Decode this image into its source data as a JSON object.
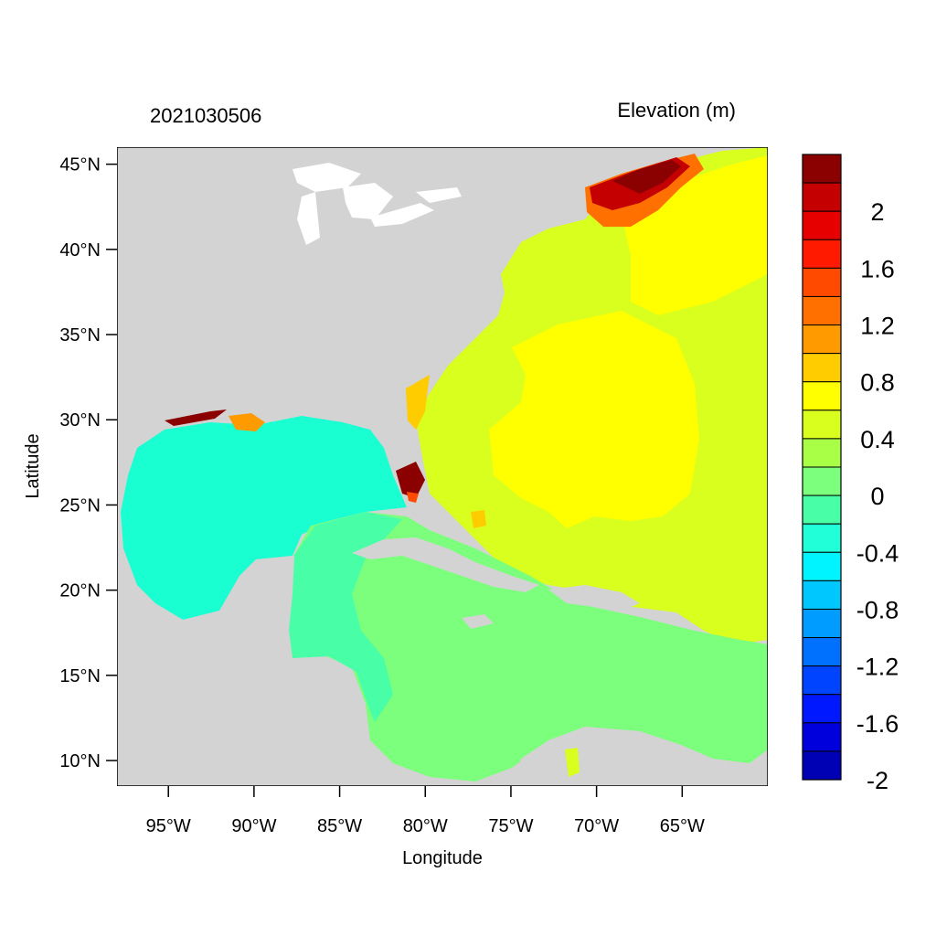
{
  "header": {
    "left_title": "2021030506",
    "right_title": "Elevation (m)"
  },
  "axes": {
    "xlabel": "Longitude",
    "ylabel": "Latitude",
    "lat_ticks": [
      {
        "value": 45,
        "label": "45°N"
      },
      {
        "value": 40,
        "label": "40°N"
      },
      {
        "value": 35,
        "label": "35°N"
      },
      {
        "value": 30,
        "label": "30°N"
      },
      {
        "value": 25,
        "label": "25°N"
      },
      {
        "value": 20,
        "label": "20°N"
      },
      {
        "value": 15,
        "label": "15°N"
      },
      {
        "value": 10,
        "label": "10°N"
      }
    ],
    "lon_ticks": [
      {
        "value": -95,
        "label": "95°W"
      },
      {
        "value": -90,
        "label": "90°W"
      },
      {
        "value": -85,
        "label": "85°W"
      },
      {
        "value": -80,
        "label": "80°W"
      },
      {
        "value": -75,
        "label": "75°W"
      },
      {
        "value": -70,
        "label": "70°W"
      },
      {
        "value": -65,
        "label": "65°W"
      }
    ],
    "lon_range": [
      -98,
      -60
    ],
    "lat_range": [
      8.5,
      46
    ]
  },
  "colorbar": {
    "levels": [
      {
        "color": "#8b0000"
      },
      {
        "color": "#c40000",
        "label": "2"
      },
      {
        "color": "#e60000"
      },
      {
        "color": "#ff1a00",
        "label": "1.6"
      },
      {
        "color": "#ff4a00"
      },
      {
        "color": "#ff7000",
        "label": "1.2"
      },
      {
        "color": "#ff9a00"
      },
      {
        "color": "#ffcc00",
        "label": "0.8"
      },
      {
        "color": "#ffff00"
      },
      {
        "color": "#d8ff1e",
        "label": "0.4"
      },
      {
        "color": "#a8ff46"
      },
      {
        "color": "#7cff7c",
        "label": "0"
      },
      {
        "color": "#48ffa8"
      },
      {
        "color": "#20ffd8",
        "label": "-0.4"
      },
      {
        "color": "#00f4ff"
      },
      {
        "color": "#00c8ff",
        "label": "-0.8"
      },
      {
        "color": "#009cff"
      },
      {
        "color": "#0070ff",
        "label": "-1.2"
      },
      {
        "color": "#0044ff"
      },
      {
        "color": "#0018ff",
        "label": "-1.6"
      },
      {
        "color": "#0000dc"
      },
      {
        "color": "#0000b4",
        "label": "-2"
      }
    ]
  },
  "colors": {
    "land": "#d3d3d3",
    "gulf": "#1affd2",
    "caribbean": "#7cff7c",
    "atlantic_near": "#d8ff1e",
    "atlantic_core": "#ffff00",
    "surge_high": "#8b0000"
  }
}
